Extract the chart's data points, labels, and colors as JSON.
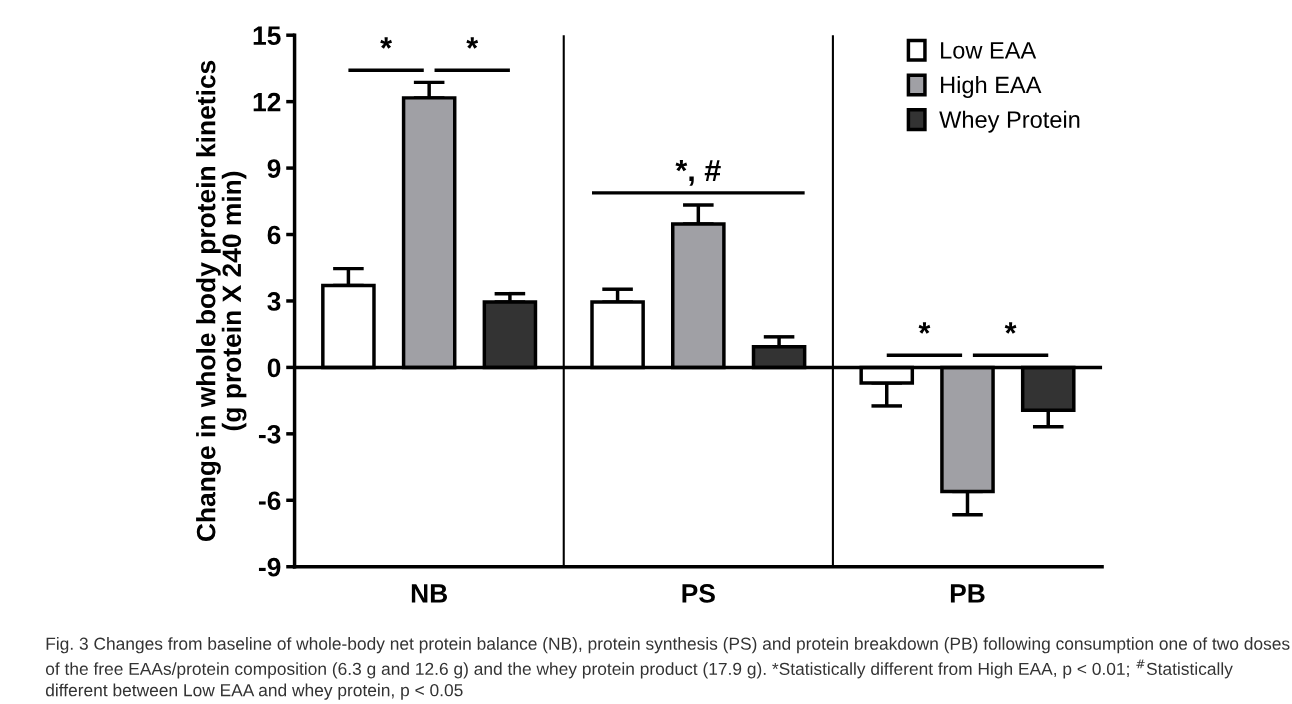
{
  "chart_data": {
    "type": "bar",
    "ylabel": "Change in whole body protein kinetics\n(g protein X 240 min)",
    "categories": [
      "NB",
      "PS",
      "PB"
    ],
    "series": [
      {
        "name": "Low EAA",
        "color": "#ffffff",
        "values": [
          3.7,
          2.95,
          -0.7
        ],
        "errors": [
          [
            3.7,
            4.46
          ],
          [
            2.95,
            3.53
          ],
          [
            -1.74,
            -0.7
          ]
        ]
      },
      {
        "name": "High EAA",
        "color": "#a0a0a5",
        "values": [
          12.17,
          6.48,
          -5.6
        ],
        "errors": [
          [
            12.17,
            12.87
          ],
          [
            6.48,
            7.33
          ],
          [
            -6.65,
            -5.6
          ]
        ]
      },
      {
        "name": "Whey Protein",
        "color": "#333333",
        "values": [
          2.95,
          0.93,
          -1.93
        ],
        "errors": [
          [
            2.95,
            3.33
          ],
          [
            0.93,
            1.38
          ],
          [
            -2.68,
            -1.93
          ]
        ]
      }
    ],
    "ylim": [
      -9,
      15
    ],
    "yticks": [
      -9,
      -6,
      -3,
      0,
      3,
      6,
      9,
      12,
      15
    ],
    "grid": false,
    "legend": "top right",
    "annotations": [
      "*",
      "*",
      "*, #",
      "*",
      "*",
      "Fig. 3 Changes from baseline of whole-body net protein balance (NB), protein synthesis (PS) and protein breakdown (PB) following consumption one of two doses of the free EAAs/protein composition (6.3 g and 12.6 g) and the whey protein product (17.9 g). *Statistically different from High EAA, p < 0.01; $^{#}$Statistically different between Low EAA and whey protein, p < 0.05"
    ]
  }
}
